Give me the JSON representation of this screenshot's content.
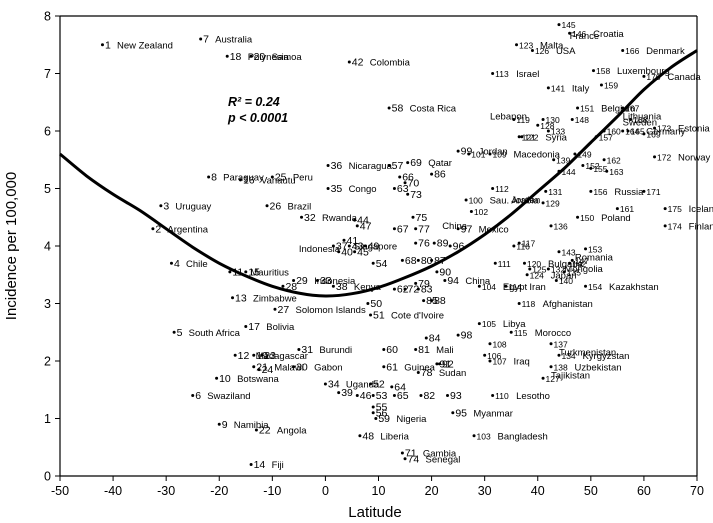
{
  "chart_data": {
    "type": "scatter",
    "title": "",
    "xlabel": "Latitude",
    "ylabel": "Incidence per 100,000",
    "xlim": [
      -50,
      70
    ],
    "ylim": [
      0,
      8
    ],
    "xticks": [
      "-50",
      "-40",
      "-30",
      "-20",
      "-10",
      "0",
      "10",
      "20",
      "30",
      "40",
      "50",
      "60",
      "70"
    ],
    "yticks": [
      "0",
      "1",
      "2",
      "3",
      "4",
      "5",
      "6",
      "7",
      "8"
    ],
    "grid": false,
    "annotation": {
      "r2": "R² = 0.24",
      "p": "p < 0.0001"
    },
    "fit_curve": {
      "x": [
        -50,
        -45,
        -40,
        -35,
        -30,
        -25,
        -20,
        -15,
        -10,
        -5,
        0,
        5,
        10,
        15,
        20,
        25,
        30,
        35,
        40,
        45,
        50,
        55,
        60,
        65,
        70
      ],
      "y": [
        5.6,
        5.22,
        4.9,
        4.62,
        4.3,
        3.98,
        3.7,
        3.48,
        3.3,
        3.18,
        3.13,
        3.17,
        3.28,
        3.45,
        3.65,
        3.9,
        4.2,
        4.55,
        4.95,
        5.35,
        5.8,
        6.25,
        6.72,
        7.1,
        7.4
      ]
    },
    "points": [
      {
        "x": -42,
        "y": 7.5,
        "num": "1",
        "name": "New Zealand"
      },
      {
        "x": -32.5,
        "y": 4.3,
        "num": "2",
        "name": "Argentina"
      },
      {
        "x": -31,
        "y": 4.7,
        "num": "3",
        "name": "Uruguay"
      },
      {
        "x": -29,
        "y": 3.7,
        "num": "4",
        "name": "Chile"
      },
      {
        "x": -28.5,
        "y": 2.5,
        "num": "5",
        "name": "South Africa"
      },
      {
        "x": -25,
        "y": 1.4,
        "num": "6",
        "name": "Swaziland"
      },
      {
        "x": -23.5,
        "y": 7.6,
        "num": "7",
        "name": "Australia"
      },
      {
        "x": -22,
        "y": 5.2,
        "num": "8",
        "name": "Paraguay"
      },
      {
        "x": -20,
        "y": 0.9,
        "num": "9",
        "name": "Namibia"
      },
      {
        "x": -20.5,
        "y": 1.7,
        "num": "10",
        "name": "Botswana"
      },
      {
        "x": -18.5,
        "y": 7.3,
        "num": "18",
        "name": "Polynesia"
      },
      {
        "x": -17,
        "y": 2.1,
        "num": "12",
        "name": "Madagascar"
      },
      {
        "x": -17.5,
        "y": 3.1,
        "num": "13",
        "name": "Zimbabwe"
      },
      {
        "x": -18,
        "y": 3.55,
        "num": "11",
        "name": "Mauritius"
      },
      {
        "x": -14,
        "y": 0.2,
        "num": "14",
        "name": "Fiji"
      },
      {
        "x": -15,
        "y": 3.55,
        "num": "15",
        "name": ""
      },
      {
        "x": -16,
        "y": 5.15,
        "num": "16",
        "name": "Vanautu"
      },
      {
        "x": -15,
        "y": 2.6,
        "num": "17",
        "name": "Bolivia"
      },
      {
        "x": -14,
        "y": 7.3,
        "num": "20",
        "name": "Samoa"
      },
      {
        "x": -13.5,
        "y": 2.1,
        "num": "19",
        "name": ""
      },
      {
        "x": -13.5,
        "y": 1.9,
        "num": "21",
        "name": "Malawi"
      },
      {
        "x": -13,
        "y": 0.8,
        "num": "22",
        "name": "Angola"
      },
      {
        "x": -12,
        "y": 2.1,
        "num": "23",
        "name": ""
      },
      {
        "x": -12.5,
        "y": 1.85,
        "num": "24",
        "name": ""
      },
      {
        "x": -10,
        "y": 5.2,
        "num": "25",
        "name": "Peru"
      },
      {
        "x": -11,
        "y": 4.7,
        "num": "26",
        "name": "Brazil"
      },
      {
        "x": -9.5,
        "y": 2.9,
        "num": "27",
        "name": "Solomon Islands"
      },
      {
        "x": -8,
        "y": 3.3,
        "num": "28",
        "name": ""
      },
      {
        "x": -6,
        "y": 3.4,
        "num": "29",
        "name": "Indonesia"
      },
      {
        "x": -6,
        "y": 1.9,
        "num": "30",
        "name": "Gabon"
      },
      {
        "x": -5,
        "y": 2.2,
        "num": "31",
        "name": "Burundi"
      },
      {
        "x": -4.5,
        "y": 4.5,
        "num": "32",
        "name": "Rwanda"
      },
      {
        "x": -1.5,
        "y": 3.4,
        "num": "33",
        "name": ""
      },
      {
        "x": 0,
        "y": 1.6,
        "num": "34",
        "name": "Uganda"
      },
      {
        "x": 0.5,
        "y": 5.0,
        "num": "35",
        "name": "Congo"
      },
      {
        "x": 0.5,
        "y": 5.4,
        "num": "36",
        "name": "Nicaragua"
      },
      {
        "x": 1.5,
        "y": 4.0,
        "num": "37",
        "name": "Singapore"
      },
      {
        "x": 1.5,
        "y": 3.3,
        "num": "38",
        "name": "Kenya"
      },
      {
        "x": 2.5,
        "y": 1.45,
        "num": "39",
        "name": ""
      },
      {
        "x": 2.5,
        "y": 3.9,
        "num": "40",
        "name": ""
      },
      {
        "x": 3.5,
        "y": 4.1,
        "num": "41",
        "name": ""
      },
      {
        "x": 4.5,
        "y": 7.2,
        "num": "42",
        "name": "Colombia"
      },
      {
        "x": 4.5,
        "y": 4.0,
        "num": "43",
        "name": ""
      },
      {
        "x": 5.5,
        "y": 4.45,
        "num": "44",
        "name": ""
      },
      {
        "x": 5.5,
        "y": 3.9,
        "num": "45",
        "name": ""
      },
      {
        "x": 6,
        "y": 1.4,
        "num": "46",
        "name": ""
      },
      {
        "x": 6,
        "y": 4.35,
        "num": "47",
        "name": ""
      },
      {
        "x": 6.5,
        "y": 0.7,
        "num": "48",
        "name": "Liberia"
      },
      {
        "x": 7.5,
        "y": 4.0,
        "num": "49",
        "name": ""
      },
      {
        "x": 8,
        "y": 3.0,
        "num": "50",
        "name": ""
      },
      {
        "x": 8.5,
        "y": 2.8,
        "num": "51",
        "name": "Cote d'Ivoire"
      },
      {
        "x": 8.5,
        "y": 1.6,
        "num": "52",
        "name": ""
      },
      {
        "x": 9,
        "y": 1.4,
        "num": "53",
        "name": ""
      },
      {
        "x": 9,
        "y": 3.7,
        "num": "54",
        "name": ""
      },
      {
        "x": 9,
        "y": 1.2,
        "num": "55",
        "name": ""
      },
      {
        "x": 9,
        "y": 1.1,
        "num": "56",
        "name": ""
      },
      {
        "x": 12,
        "y": 5.4,
        "num": "57",
        "name": ""
      },
      {
        "x": 12,
        "y": 6.4,
        "num": "58",
        "name": "Costa Rica"
      },
      {
        "x": 9.5,
        "y": 1.0,
        "num": "59",
        "name": "Nigeria"
      },
      {
        "x": 11,
        "y": 2.2,
        "num": "60",
        "name": ""
      },
      {
        "x": 11,
        "y": 1.9,
        "num": "61",
        "name": "Guinea"
      },
      {
        "x": 13,
        "y": 3.25,
        "num": "62",
        "name": ""
      },
      {
        "x": 13,
        "y": 5.0,
        "num": "63",
        "name": ""
      },
      {
        "x": 12.5,
        "y": 1.55,
        "num": "64",
        "name": ""
      },
      {
        "x": 13,
        "y": 1.4,
        "num": "65",
        "name": ""
      },
      {
        "x": 14,
        "y": 5.2,
        "num": "66",
        "name": ""
      },
      {
        "x": 13,
        "y": 4.3,
        "num": "67",
        "name": ""
      },
      {
        "x": 14.5,
        "y": 3.75,
        "num": "68",
        "name": ""
      },
      {
        "x": 15.5,
        "y": 5.45,
        "num": "69",
        "name": "Qatar"
      },
      {
        "x": 15,
        "y": 5.1,
        "num": "70",
        "name": ""
      },
      {
        "x": 14.5,
        "y": 0.4,
        "num": "71",
        "name": "Gambia"
      },
      {
        "x": 15,
        "y": 3.25,
        "num": "72",
        "name": ""
      },
      {
        "x": 15.5,
        "y": 4.9,
        "num": "73",
        "name": ""
      },
      {
        "x": 15,
        "y": 0.3,
        "num": "74",
        "name": "Senegal"
      },
      {
        "x": 16.5,
        "y": 4.5,
        "num": "75",
        "name": ""
      },
      {
        "x": 17,
        "y": 4.05,
        "num": "76",
        "name": ""
      },
      {
        "x": 17,
        "y": 4.3,
        "num": "77",
        "name": ""
      },
      {
        "x": 17.5,
        "y": 1.8,
        "num": "78",
        "name": "Sudan"
      },
      {
        "x": 17,
        "y": 3.35,
        "num": "79",
        "name": ""
      },
      {
        "x": 17.5,
        "y": 3.75,
        "num": "80",
        "name": ""
      },
      {
        "x": 17,
        "y": 2.2,
        "num": "81",
        "name": "Mali"
      },
      {
        "x": 18,
        "y": 1.4,
        "num": "82",
        "name": ""
      },
      {
        "x": 17.5,
        "y": 3.25,
        "num": "83",
        "name": ""
      },
      {
        "x": 19,
        "y": 2.4,
        "num": "84",
        "name": ""
      },
      {
        "x": 18.5,
        "y": 3.05,
        "num": "85",
        "name": ""
      },
      {
        "x": 20,
        "y": 5.25,
        "num": "86",
        "name": ""
      },
      {
        "x": 20,
        "y": 3.75,
        "num": "87",
        "name": ""
      },
      {
        "x": 20,
        "y": 3.05,
        "num": "88",
        "name": ""
      },
      {
        "x": 20.5,
        "y": 4.05,
        "num": "89",
        "name": ""
      },
      {
        "x": 21,
        "y": 3.55,
        "num": "90",
        "name": ""
      },
      {
        "x": 21,
        "y": 1.95,
        "num": "91",
        "name": ""
      },
      {
        "x": 21.5,
        "y": 1.95,
        "num": "92",
        "name": ""
      },
      {
        "x": 23,
        "y": 1.4,
        "num": "93",
        "name": ""
      },
      {
        "x": 22.5,
        "y": 3.4,
        "num": "94",
        "name": "China"
      },
      {
        "x": 24,
        "y": 1.1,
        "num": "95",
        "name": "Myanmar"
      },
      {
        "x": 23.5,
        "y": 4.0,
        "num": "96",
        "name": ""
      },
      {
        "x": 25,
        "y": 4.3,
        "num": "97",
        "name": "Mexico"
      },
      {
        "x": 25,
        "y": 2.45,
        "num": "98",
        "name": ""
      },
      {
        "x": 25,
        "y": 5.65,
        "num": "99",
        "name": "Jordan"
      },
      {
        "x": 26.5,
        "y": 4.8,
        "num": "100",
        "name": "Sau. Arabia"
      },
      {
        "x": 27,
        "y": 5.6,
        "num": "101",
        "name": ""
      },
      {
        "x": 27.5,
        "y": 4.6,
        "num": "102",
        "name": ""
      },
      {
        "x": 28,
        "y": 0.7,
        "num": "103",
        "name": "Bangladesh"
      },
      {
        "x": 29,
        "y": 3.3,
        "num": "104",
        "name": "Egypt"
      },
      {
        "x": 29,
        "y": 2.65,
        "num": "105",
        "name": "Libya"
      },
      {
        "x": 30,
        "y": 2.1,
        "num": "106",
        "name": ""
      },
      {
        "x": 31,
        "y": 2.0,
        "num": "107",
        "name": "Iraq"
      },
      {
        "x": 31,
        "y": 2.3,
        "num": "108",
        "name": ""
      },
      {
        "x": 31,
        "y": 5.6,
        "num": "109",
        "name": "Macedonia"
      },
      {
        "x": 31.5,
        "y": 1.4,
        "num": "110",
        "name": "Lesotho"
      },
      {
        "x": 32,
        "y": 3.7,
        "num": "111",
        "name": ""
      },
      {
        "x": 31.5,
        "y": 5.0,
        "num": "112",
        "name": ""
      },
      {
        "x": 31.5,
        "y": 7.0,
        "num": "113",
        "name": "Israel"
      },
      {
        "x": 34,
        "y": 3.3,
        "num": "114",
        "name": "Iran"
      },
      {
        "x": 35,
        "y": 2.5,
        "num": "115",
        "name": "Morocco"
      },
      {
        "x": 35.5,
        "y": 4.0,
        "num": "116",
        "name": ""
      },
      {
        "x": 36.5,
        "y": 4.05,
        "num": "117",
        "name": ""
      },
      {
        "x": 36.5,
        "y": 3.0,
        "num": "118",
        "name": "Afghanistan"
      },
      {
        "x": 35.5,
        "y": 6.2,
        "num": "119",
        "name": ""
      },
      {
        "x": 37.5,
        "y": 3.7,
        "num": "120",
        "name": "Bulgaria"
      },
      {
        "x": 36.5,
        "y": 5.9,
        "num": "121",
        "name": ""
      },
      {
        "x": 37,
        "y": 5.9,
        "num": "122",
        "name": "Syria"
      },
      {
        "x": 36,
        "y": 7.5,
        "num": "123",
        "name": "Malta"
      },
      {
        "x": 38,
        "y": 3.5,
        "num": "124",
        "name": "Japan"
      },
      {
        "x": 38.5,
        "y": 3.6,
        "num": "125",
        "name": ""
      },
      {
        "x": 39,
        "y": 7.4,
        "num": "126",
        "name": "USA"
      },
      {
        "x": 41,
        "y": 1.7,
        "num": "127",
        "name": ""
      },
      {
        "x": 40,
        "y": 6.1,
        "num": "128",
        "name": ""
      },
      {
        "x": 41,
        "y": 4.75,
        "num": "129",
        "name": ""
      },
      {
        "x": 41,
        "y": 6.2,
        "num": "130",
        "name": ""
      },
      {
        "x": 41.5,
        "y": 4.95,
        "num": "131",
        "name": ""
      },
      {
        "x": 42,
        "y": 3.6,
        "num": "132",
        "name": ""
      },
      {
        "x": 42,
        "y": 6.0,
        "num": "133",
        "name": ""
      },
      {
        "x": 44,
        "y": 2.1,
        "num": "134",
        "name": "Kyrgyzstan"
      },
      {
        "x": 45,
        "y": 3.55,
        "num": "135",
        "name": ""
      },
      {
        "x": 42.5,
        "y": 4.35,
        "num": "136",
        "name": ""
      },
      {
        "x": 42.5,
        "y": 2.3,
        "num": "137",
        "name": ""
      },
      {
        "x": 42.5,
        "y": 1.9,
        "num": "138",
        "name": "Uzbekistan"
      },
      {
        "x": 43,
        "y": 5.5,
        "num": "139",
        "name": ""
      },
      {
        "x": 43.5,
        "y": 3.4,
        "num": "140",
        "name": ""
      },
      {
        "x": 42,
        "y": 6.75,
        "num": "141",
        "name": "Italy"
      },
      {
        "x": 46,
        "y": 3.7,
        "num": "142",
        "name": ""
      },
      {
        "x": 44,
        "y": 3.9,
        "num": "143",
        "name": ""
      },
      {
        "x": 44,
        "y": 5.3,
        "num": "144",
        "name": ""
      },
      {
        "x": 44,
        "y": 7.85,
        "num": "145",
        "name": ""
      },
      {
        "x": 46,
        "y": 7.7,
        "num": "146",
        "name": "Croatia"
      },
      {
        "x": 46.5,
        "y": 3.75,
        "num": "147",
        "name": ""
      },
      {
        "x": 46.5,
        "y": 6.2,
        "num": "148",
        "name": ""
      },
      {
        "x": 47,
        "y": 5.6,
        "num": "149",
        "name": ""
      },
      {
        "x": 47.5,
        "y": 4.5,
        "num": "150",
        "name": "Poland"
      },
      {
        "x": 47.5,
        "y": 6.4,
        "num": "151",
        "name": "Belgium"
      },
      {
        "x": 48.5,
        "y": 5.4,
        "num": "152",
        "name": ""
      },
      {
        "x": 49,
        "y": 3.95,
        "num": "153",
        "name": ""
      },
      {
        "x": 49,
        "y": 3.3,
        "num": "154",
        "name": "Kazakhstan"
      },
      {
        "x": 50,
        "y": 5.35,
        "num": "155",
        "name": ""
      },
      {
        "x": 50,
        "y": 4.95,
        "num": "156",
        "name": "Russia"
      },
      {
        "x": 51,
        "y": 5.9,
        "num": "157",
        "name": ""
      },
      {
        "x": 50.5,
        "y": 7.05,
        "num": "158",
        "name": "Luxembourg"
      },
      {
        "x": 52,
        "y": 6.8,
        "num": "159",
        "name": ""
      },
      {
        "x": 52.5,
        "y": 6.0,
        "num": "160",
        "name": ""
      },
      {
        "x": 55,
        "y": 4.65,
        "num": "161",
        "name": ""
      },
      {
        "x": 52.5,
        "y": 5.5,
        "num": "162",
        "name": ""
      },
      {
        "x": 53,
        "y": 5.3,
        "num": "163",
        "name": ""
      },
      {
        "x": 56,
        "y": 6.0,
        "num": "164",
        "name": "Germany"
      },
      {
        "x": 57,
        "y": 6.0,
        "num": "165",
        "name": ""
      },
      {
        "x": 56,
        "y": 7.4,
        "num": "166",
        "name": "Denmark"
      },
      {
        "x": 56,
        "y": 6.4,
        "num": "167",
        "name": ""
      },
      {
        "x": 57.5,
        "y": 6.2,
        "num": "168",
        "name": ""
      },
      {
        "x": 60,
        "y": 5.95,
        "num": "169",
        "name": ""
      },
      {
        "x": 60,
        "y": 6.95,
        "num": "170",
        "name": "Canada"
      },
      {
        "x": 60,
        "y": 4.95,
        "num": "171",
        "name": ""
      },
      {
        "x": 62,
        "y": 5.55,
        "num": "172",
        "name": "Norway"
      },
      {
        "x": 62,
        "y": 6.05,
        "num": "173",
        "name": "Estonia"
      },
      {
        "x": 64,
        "y": 4.35,
        "num": "174",
        "name": "Finland"
      },
      {
        "x": 64,
        "y": 4.65,
        "num": "175",
        "name": "Iceland"
      }
    ],
    "labels": [
      {
        "x": 22,
        "y": 4.3,
        "text": "China"
      },
      {
        "x": 35,
        "y": 4.75,
        "text": "Jordan"
      },
      {
        "x": 45,
        "y": 3.55,
        "text": "Mongolia"
      },
      {
        "x": 47,
        "y": 3.75,
        "text": "Romania"
      },
      {
        "x": 44,
        "y": 2.1,
        "text": "Turkmenistan"
      },
      {
        "x": 42.5,
        "y": 1.7,
        "text": "Tajikistan"
      },
      {
        "x": 56,
        "y": 6.2,
        "text": "Lithuania"
      },
      {
        "x": 56,
        "y": 6.1,
        "text": "Sweden"
      },
      {
        "x": 31,
        "y": 6.2,
        "text": "Lebanon"
      },
      {
        "x": 46,
        "y": 7.6,
        "text": "France"
      },
      {
        "x": -5,
        "y": 3.9,
        "text": "Indonesia"
      }
    ]
  }
}
